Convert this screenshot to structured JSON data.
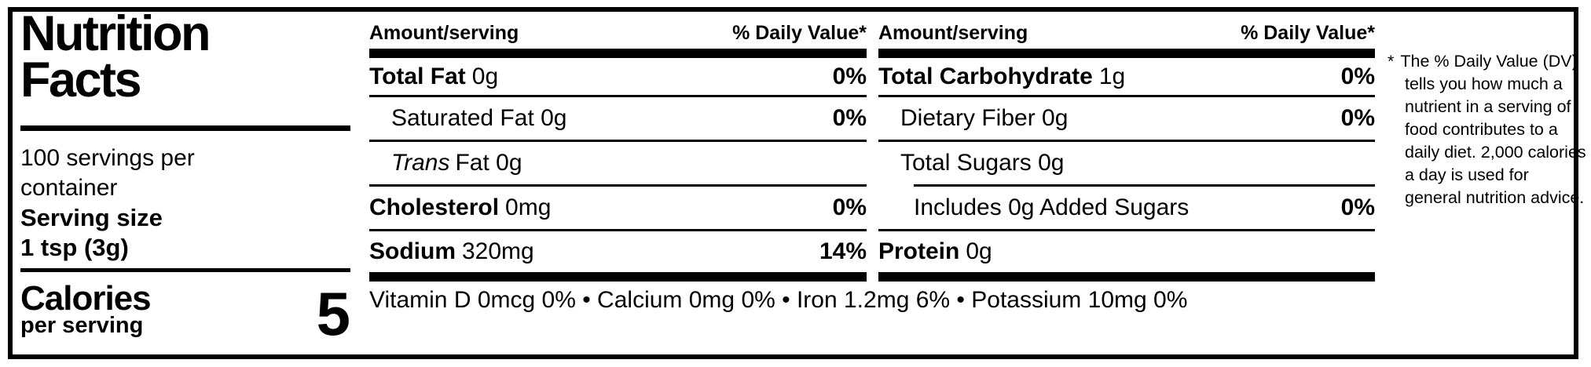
{
  "label": {
    "title_line1": "Nutrition",
    "title_line2": "Facts",
    "servings_per_container": "100 servings per container",
    "serving_size_label": "Serving size",
    "serving_size_value": "1 tsp (3g)",
    "calories_label": "Calories",
    "calories_sublabel": "per serving",
    "calories_value": "5"
  },
  "columns": [
    {
      "header_amount": "Amount/serving",
      "header_dv": "% Daily Value*",
      "rows": [
        {
          "name": "Total Fat",
          "amount": "0g",
          "dv": "0%"
        },
        {
          "name": "Saturated Fat 0g",
          "dv": "0%"
        },
        {
          "name_italic": "Trans",
          "name_rest": "Fat 0g"
        },
        {
          "name": "Cholesterol",
          "amount": "0mg",
          "dv": "0%"
        },
        {
          "name": "Sodium",
          "amount": "320mg",
          "dv": "14%"
        }
      ]
    },
    {
      "header_amount": "Amount/serving",
      "header_dv": "% Daily Value*",
      "rows": [
        {
          "name": "Total Carbohydrate",
          "amount": "1g",
          "dv": "0%"
        },
        {
          "name": "Dietary Fiber 0g",
          "dv": "0%"
        },
        {
          "name": "Total Sugars 0g"
        },
        {
          "name": "Includes 0g Added Sugars",
          "dv": "0%"
        },
        {
          "name": "Protein",
          "amount": "0g"
        }
      ]
    }
  ],
  "vitamins_line": "Vitamin D 0mcg 0% • Calcium 0mg 0% • Iron 1.2mg 6% • Potassium 10mg 0%",
  "footnote": {
    "marker": "*",
    "text": "The % Daily Value (DV) tells you how much a nutrient in a serving of food contributes to a daily diet. 2,000 calories a day is used for general nutrition advice."
  },
  "colors": {
    "ink": "#000000",
    "background": "#ffffff"
  }
}
